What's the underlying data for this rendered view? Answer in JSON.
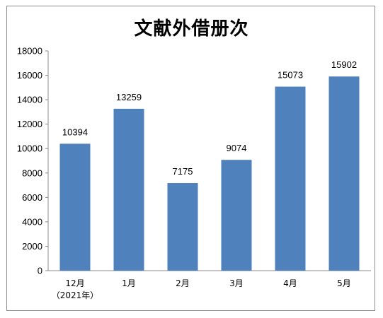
{
  "chart_data": {
    "type": "bar",
    "title": "文献外借册次",
    "categories": [
      [
        "12月",
        "（2021年）"
      ],
      [
        "1月"
      ],
      [
        "2月"
      ],
      [
        "3月"
      ],
      [
        "4月"
      ],
      [
        "5月"
      ]
    ],
    "values": [
      10394,
      13259,
      7175,
      9074,
      15073,
      15902
    ],
    "ylim": [
      0,
      18000
    ],
    "yticks": [
      0,
      2000,
      4000,
      6000,
      8000,
      10000,
      12000,
      14000,
      16000,
      18000
    ],
    "grid": false,
    "bar_color": "#4f81bd",
    "data_labels": true
  }
}
